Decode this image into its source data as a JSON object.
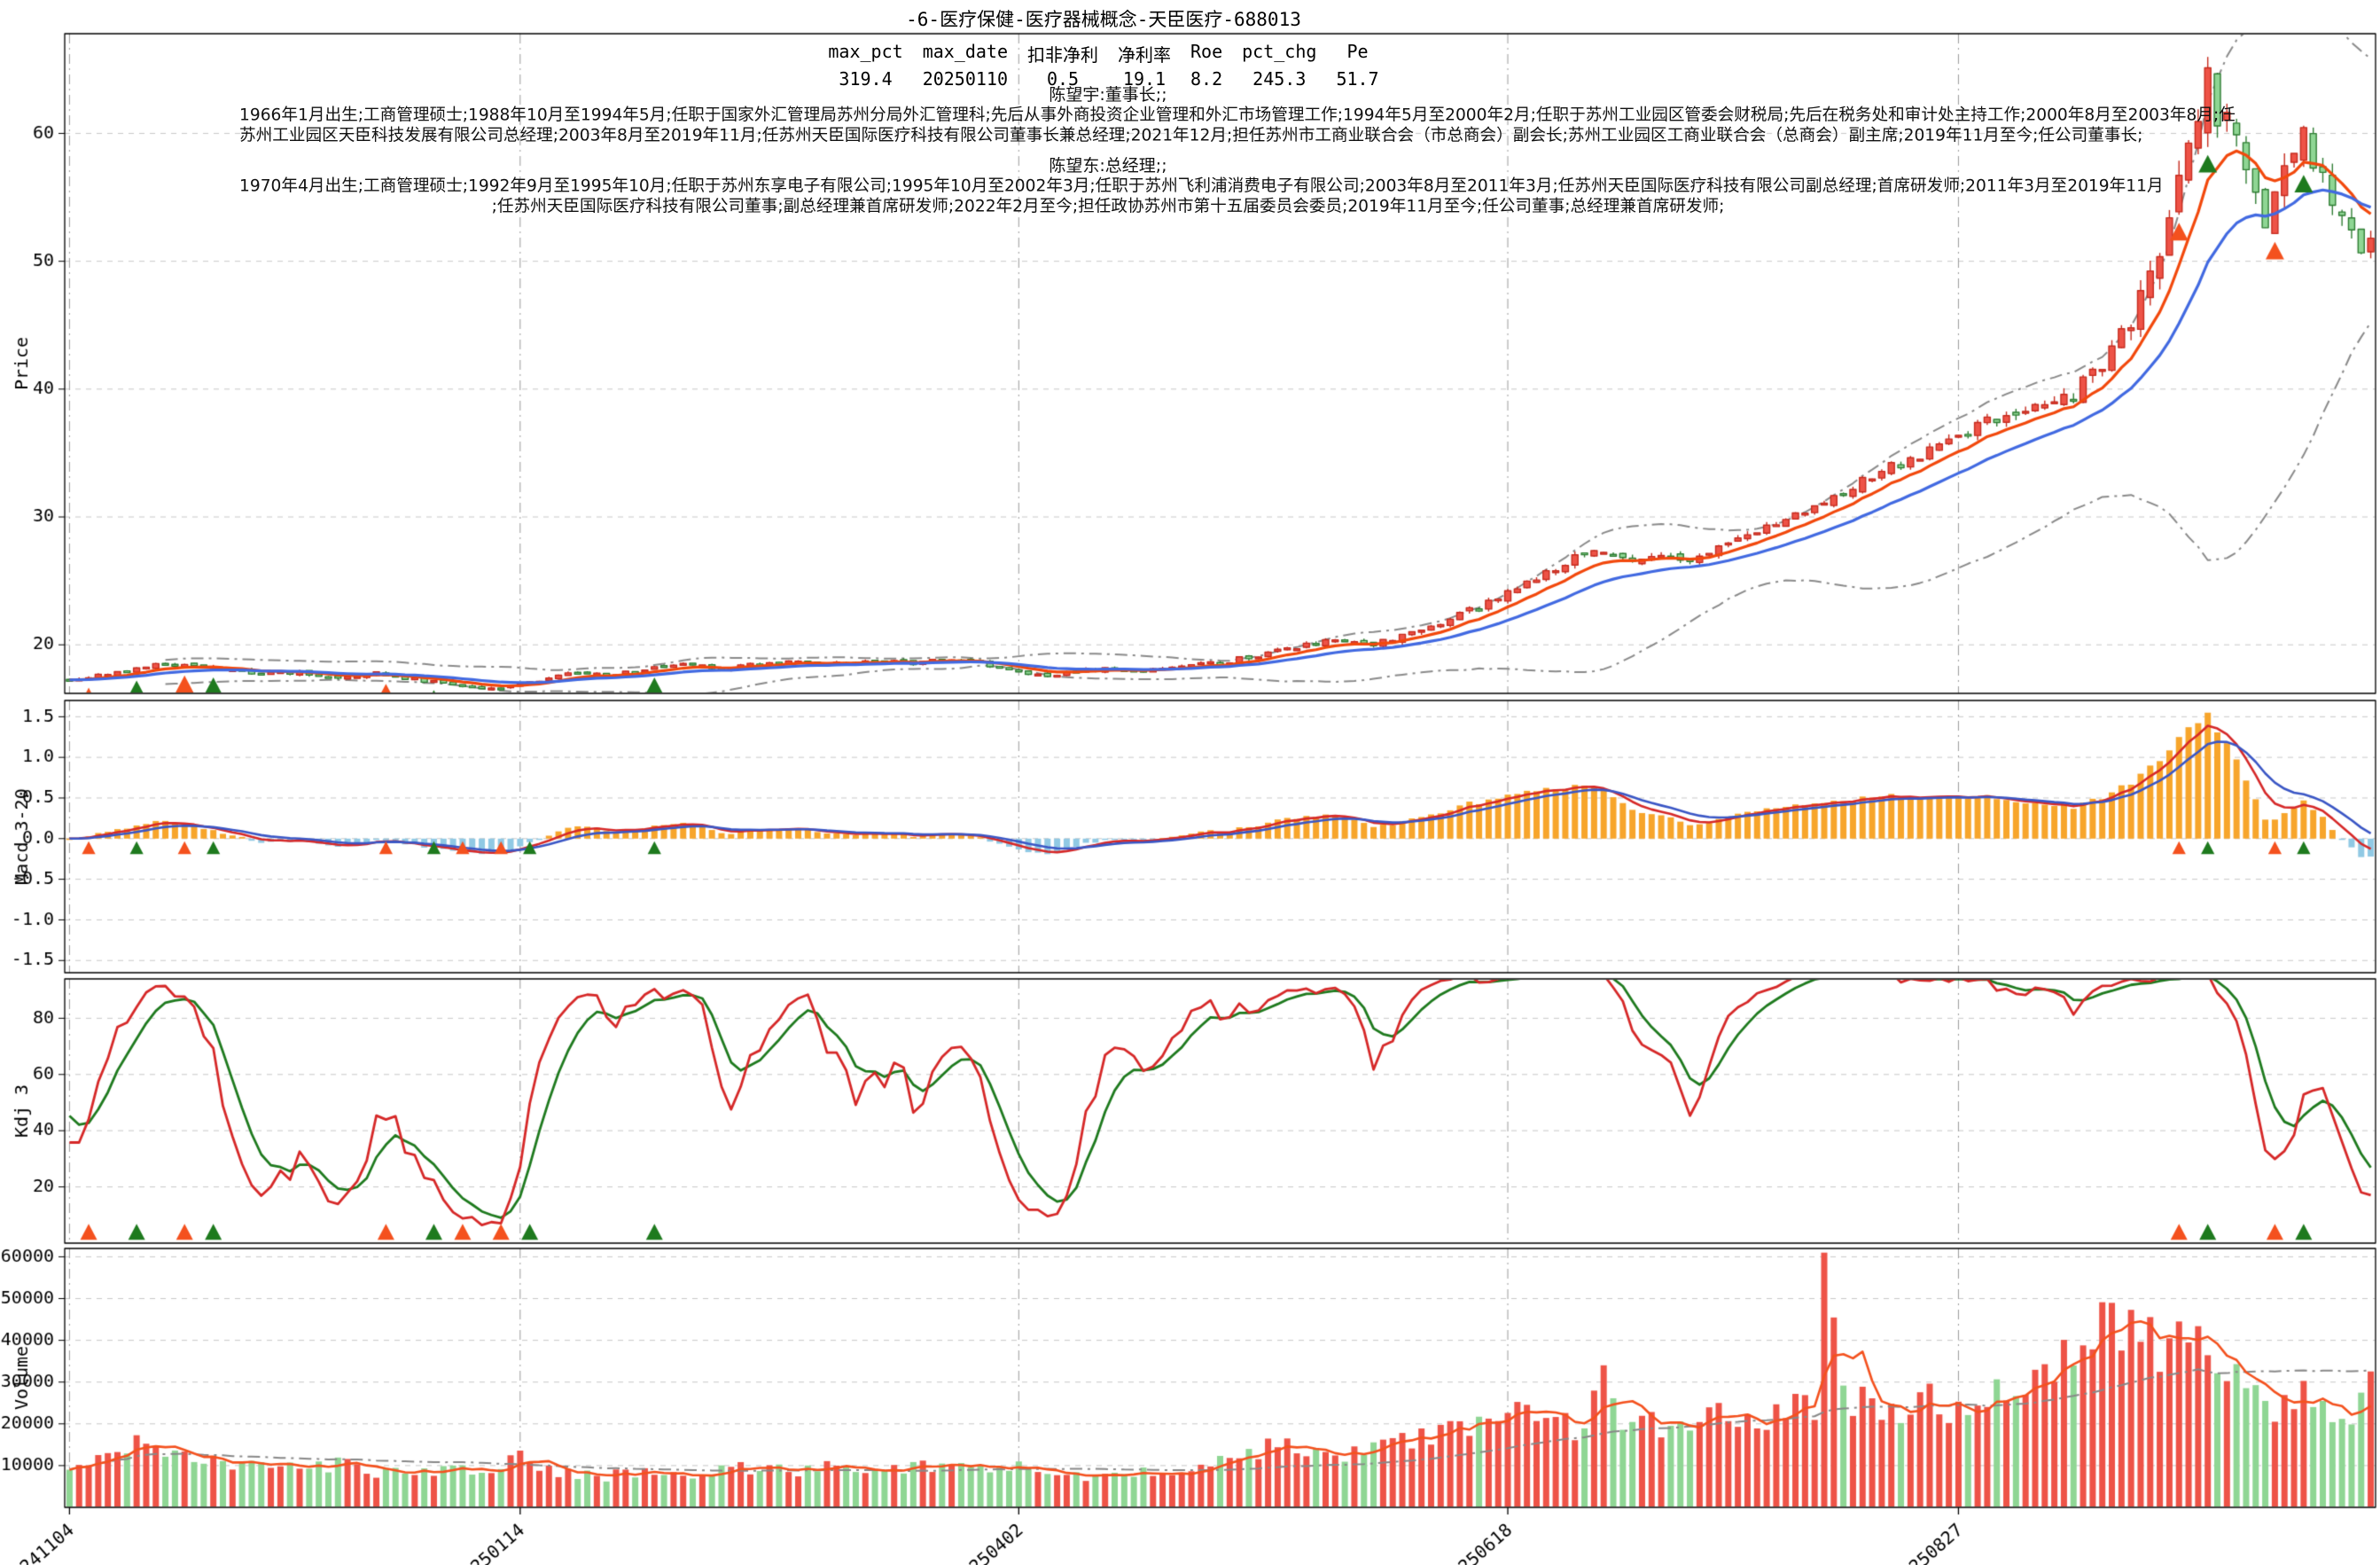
{
  "title": "-6-医疗保健-医疗器械概念-天臣医疗-688013",
  "stats": {
    "columns": [
      "max_pct",
      "max_date",
      "扣非净利",
      "净利率",
      "Roe",
      "pct_chg",
      "Pe"
    ],
    "values": [
      "319.4",
      "20250110",
      "0.5",
      "19.1",
      "8.2",
      "245.3",
      "51.7"
    ]
  },
  "executives": [
    {
      "name_role": "陈望宇:董事长;;",
      "lines": [
        "1966年1月出生;工商管理硕士;1988年10月至1994年5月;任职于国家外汇管理局苏州分局外汇管理科;先后从事外商投资企业管理和外汇市场管理工作;1994年5月至2000年2月;任职于苏州工业园区管委会财税局;先后在税务处和审计处主持工作;2000年8月至2003年8月;任",
        "苏州工业园区天臣科技发展有限公司总经理;2003年8月至2019年11月;任苏州天臣国际医疗科技有限公司董事长兼总经理;2021年12月;担任苏州市工商业联合会（市总商会）副会长;苏州工业园区工商业联合会（总商会）副主席;2019年11月至今;任公司董事长;"
      ]
    },
    {
      "name_role": "陈望东:总经理;;",
      "lines": [
        "1970年4月出生;工商管理硕士;1992年9月至1995年10月;任职于苏州东享电子有限公司;1995年10月至2002年3月;任职于苏州飞利浦消费电子有限公司;2003年8月至2011年3月;任苏州天臣国际医疗科技有限公司副总经理;首席研发师;2011年3月至2019年11月",
        ";任苏州天臣国际医疗科技有限公司董事;副总经理兼首席研发师;2022年2月至今;担任政协苏州市第十五届委员会委员;2019年11月至今;任公司董事;总经理兼首席研发师;"
      ]
    }
  ],
  "chart_data": {
    "type": "candlestick-multi-panel",
    "x_axis": {
      "n_periods": 241,
      "tick_positions": [
        0,
        47,
        99,
        150,
        197
      ],
      "tick_labels": [
        "241104",
        "250114",
        "250402",
        "250618",
        "250827"
      ]
    },
    "panels": [
      {
        "id": "price",
        "ylabel": "Price",
        "ylim": [
          16.2,
          67.8
        ],
        "yticks": [
          20,
          30,
          40,
          50,
          60
        ],
        "series": [
          "candles",
          "ma-fast",
          "ma-slow",
          "bollinger-upper",
          "bollinger-lower",
          "buy-sell-markers"
        ],
        "close_keyframes": [
          [
            0,
            17.2
          ],
          [
            4,
            17.6
          ],
          [
            8,
            18.3
          ],
          [
            12,
            18.6
          ],
          [
            16,
            18.0
          ],
          [
            20,
            17.7
          ],
          [
            24,
            17.9
          ],
          [
            28,
            17.5
          ],
          [
            32,
            17.8
          ],
          [
            36,
            17.3
          ],
          [
            40,
            16.9
          ],
          [
            44,
            16.5
          ],
          [
            47,
            16.8
          ],
          [
            50,
            17.4
          ],
          [
            53,
            17.8
          ],
          [
            56,
            17.6
          ],
          [
            60,
            18.1
          ],
          [
            64,
            18.4
          ],
          [
            68,
            18.2
          ],
          [
            72,
            18.5
          ],
          [
            76,
            18.7
          ],
          [
            80,
            18.5
          ],
          [
            84,
            18.8
          ],
          [
            88,
            18.6
          ],
          [
            92,
            18.9
          ],
          [
            96,
            18.4
          ],
          [
            99,
            17.9
          ],
          [
            102,
            17.6
          ],
          [
            105,
            17.9
          ],
          [
            108,
            18.2
          ],
          [
            112,
            18.0
          ],
          [
            116,
            18.3
          ],
          [
            120,
            18.6
          ],
          [
            124,
            19.2
          ],
          [
            128,
            19.9
          ],
          [
            132,
            20.3
          ],
          [
            136,
            20.1
          ],
          [
            140,
            21.0
          ],
          [
            144,
            22.0
          ],
          [
            148,
            23.2
          ],
          [
            151,
            24.4
          ],
          [
            154,
            25.6
          ],
          [
            157,
            26.8
          ],
          [
            160,
            27.3
          ],
          [
            163,
            26.5
          ],
          [
            166,
            27.2
          ],
          [
            169,
            26.8
          ],
          [
            172,
            27.8
          ],
          [
            175,
            28.6
          ],
          [
            178,
            29.5
          ],
          [
            181,
            30.4
          ],
          [
            184,
            31.6
          ],
          [
            187,
            32.8
          ],
          [
            190,
            33.9
          ],
          [
            193,
            34.8
          ],
          [
            197,
            36.2
          ],
          [
            200,
            37.4
          ],
          [
            203,
            38.4
          ],
          [
            206,
            39.2
          ],
          [
            209,
            39.8
          ],
          [
            212,
            41.5
          ],
          [
            214,
            44.0
          ],
          [
            216,
            47.5
          ],
          [
            218,
            51.5
          ],
          [
            220,
            56.0
          ],
          [
            222,
            61.0
          ],
          [
            223,
            63.5
          ],
          [
            224,
            62.2
          ],
          [
            225,
            63.2
          ],
          [
            226,
            60.5
          ],
          [
            227,
            58.0
          ],
          [
            228,
            55.5
          ],
          [
            229,
            53.5
          ],
          [
            230,
            55.2
          ],
          [
            231,
            57.0
          ],
          [
            232,
            58.6
          ],
          [
            233,
            59.6
          ],
          [
            234,
            58.2
          ],
          [
            235,
            56.5
          ],
          [
            236,
            55.0
          ],
          [
            237,
            53.5
          ],
          [
            238,
            52.5
          ],
          [
            239,
            51.0
          ],
          [
            240,
            51.8
          ]
        ],
        "volatility_keyframes": [
          [
            0,
            0.011
          ],
          [
            30,
            0.009
          ],
          [
            60,
            0.008
          ],
          [
            100,
            0.008
          ],
          [
            130,
            0.011
          ],
          [
            150,
            0.014
          ],
          [
            170,
            0.012
          ],
          [
            190,
            0.013
          ],
          [
            205,
            0.014
          ],
          [
            212,
            0.022
          ],
          [
            222,
            0.028
          ],
          [
            230,
            0.024
          ],
          [
            240,
            0.018
          ]
        ]
      },
      {
        "id": "macd",
        "ylabel": "Macd 3-20",
        "ylim": [
          -1.65,
          1.7
        ],
        "yticks": [
          -1.5,
          -1.0,
          -0.5,
          0.0,
          0.5,
          1.0,
          1.5
        ],
        "series": [
          "macd-histogram",
          "dif-line",
          "dea-line"
        ],
        "hist_peak": 1.55
      },
      {
        "id": "kdj",
        "ylabel": "Kdj 3",
        "ylim": [
          0,
          94
        ],
        "yticks": [
          20,
          40,
          60,
          80
        ],
        "series": [
          "k-line",
          "d-line",
          "signal-marker-row"
        ]
      },
      {
        "id": "volume",
        "ylabel": "Volume",
        "ylim": [
          0,
          62000
        ],
        "yticks": [
          10000,
          20000,
          30000,
          40000,
          50000,
          60000
        ],
        "series": [
          "volume-bars",
          "volume-ma-fast",
          "volume-ma-slow"
        ],
        "volume_keyframes": [
          [
            0,
            9000
          ],
          [
            4,
            13500
          ],
          [
            8,
            15500
          ],
          [
            12,
            12000
          ],
          [
            16,
            10000
          ],
          [
            20,
            9500
          ],
          [
            24,
            9000
          ],
          [
            28,
            10500
          ],
          [
            32,
            8500
          ],
          [
            36,
            8000
          ],
          [
            40,
            9000
          ],
          [
            44,
            8500
          ],
          [
            47,
            12000
          ],
          [
            51,
            8000
          ],
          [
            56,
            7500
          ],
          [
            61,
            9000
          ],
          [
            66,
            8000
          ],
          [
            71,
            9500
          ],
          [
            76,
            8500
          ],
          [
            81,
            10000
          ],
          [
            86,
            9000
          ],
          [
            91,
            10500
          ],
          [
            96,
            9500
          ],
          [
            99,
            10500
          ],
          [
            103,
            8000
          ],
          [
            107,
            7500
          ],
          [
            111,
            8500
          ],
          [
            115,
            9000
          ],
          [
            119,
            10000
          ],
          [
            123,
            12000
          ],
          [
            126,
            15500
          ],
          [
            129,
            13000
          ],
          [
            133,
            12000
          ],
          [
            137,
            14000
          ],
          [
            141,
            16500
          ],
          [
            145,
            18000
          ],
          [
            149,
            20000
          ],
          [
            152,
            23000
          ],
          [
            155,
            20000
          ],
          [
            158,
            19000
          ],
          [
            160,
            31500
          ],
          [
            162,
            18000
          ],
          [
            165,
            20500
          ],
          [
            168,
            18500
          ],
          [
            171,
            22000
          ],
          [
            174,
            20000
          ],
          [
            177,
            19500
          ],
          [
            180,
            26000
          ],
          [
            182,
            21000
          ],
          [
            183,
            57500
          ],
          [
            185,
            28000
          ],
          [
            188,
            24000
          ],
          [
            191,
            22500
          ],
          [
            194,
            26500
          ],
          [
            197,
            23500
          ],
          [
            200,
            25500
          ],
          [
            203,
            27000
          ],
          [
            206,
            30000
          ],
          [
            209,
            36000
          ],
          [
            212,
            44500
          ],
          [
            214,
            42000
          ],
          [
            216,
            40000
          ],
          [
            218,
            38500
          ],
          [
            220,
            41000
          ],
          [
            222,
            37000
          ],
          [
            224,
            34000
          ],
          [
            226,
            31000
          ],
          [
            228,
            27000
          ],
          [
            230,
            25000
          ],
          [
            232,
            28500
          ],
          [
            234,
            23000
          ],
          [
            236,
            21000
          ],
          [
            238,
            18500
          ],
          [
            240,
            33000
          ]
        ]
      }
    ],
    "markers": {
      "days": [
        2,
        7,
        12,
        15,
        33,
        38,
        41,
        45,
        48,
        61,
        220,
        223,
        230,
        233
      ],
      "colors": [
        "orange",
        "green",
        "orange",
        "green",
        "orange",
        "green",
        "orange",
        "orange",
        "green",
        "green",
        "orange",
        "green",
        "orange",
        "green"
      ]
    }
  },
  "colors": {
    "up_candle": "#ee5347",
    "up_candle_edge": "#c62b1e",
    "down_candle": "#8fd694",
    "down_candle_edge": "#2f7d33",
    "ma_fast": "#f2480c",
    "ma_slow": "#4169e1",
    "bollinger": "#8a8a8a",
    "macd_pos": "#f7a52b",
    "macd_neg": "#90c9e4",
    "macd_dif": "#d62828",
    "macd_dea": "#3a56c5",
    "kdj_k": "#d62828",
    "kdj_d": "#1e7a1e",
    "vol_ma_fast": "#f4511e",
    "vol_ma_slow": "#888888",
    "marker_orange": "#f4511e",
    "marker_green": "#1e7a1e",
    "grid_h": "#c8c8c8",
    "grid_v": "#9a9a9a",
    "axis": "#000000"
  }
}
